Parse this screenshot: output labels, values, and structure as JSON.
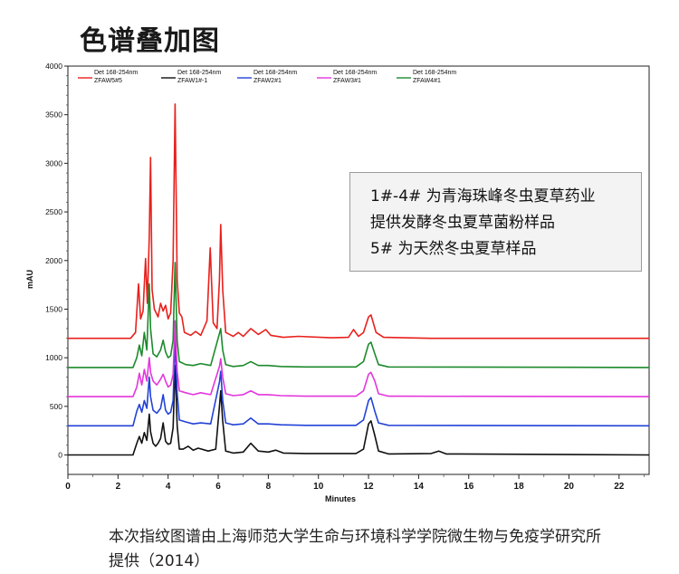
{
  "title": "色谱叠加图",
  "caption": "本次指纹图谱由上海师范大学生命与环境科学学院微生物与免疫学研究所提供（2014）",
  "annotation": {
    "lines": [
      "1#-4# 为青海珠峰冬虫夏草药业",
      "提供发酵冬虫夏草菌粉样品",
      "5# 为天然冬虫夏草样品"
    ]
  },
  "chart_data": {
    "type": "line",
    "title": "",
    "xlabel": "Minutes",
    "ylabel": "mAU",
    "xlim": [
      0,
      23.2
    ],
    "ylim": [
      -200,
      4000
    ],
    "xticks": [
      0,
      2,
      4,
      6,
      8,
      10,
      12,
      14,
      16,
      18,
      20,
      22
    ],
    "yticks": [
      0,
      500,
      1000,
      1500,
      2000,
      2500,
      3000,
      3500,
      4000
    ],
    "legend_position": "top-left",
    "series": [
      {
        "detector": "Det 168-254nm",
        "name": "ZFAW5#5",
        "color": "#e8201c",
        "points": [
          [
            0,
            1200
          ],
          [
            2.5,
            1200
          ],
          [
            2.7,
            1260
          ],
          [
            2.82,
            1760
          ],
          [
            2.9,
            1400
          ],
          [
            3.0,
            1480
          ],
          [
            3.1,
            2020
          ],
          [
            3.17,
            1560
          ],
          [
            3.25,
            2250
          ],
          [
            3.3,
            3060
          ],
          [
            3.36,
            1700
          ],
          [
            3.45,
            1500
          ],
          [
            3.6,
            1420
          ],
          [
            3.7,
            1560
          ],
          [
            3.8,
            1480
          ],
          [
            3.9,
            1540
          ],
          [
            4.0,
            1400
          ],
          [
            4.1,
            1460
          ],
          [
            4.2,
            2000
          ],
          [
            4.28,
            3610
          ],
          [
            4.36,
            1800
          ],
          [
            4.45,
            1460
          ],
          [
            4.55,
            1420
          ],
          [
            4.65,
            1260
          ],
          [
            4.9,
            1230
          ],
          [
            5.1,
            1270
          ],
          [
            5.3,
            1230
          ],
          [
            5.55,
            1380
          ],
          [
            5.68,
            2130
          ],
          [
            5.8,
            1360
          ],
          [
            5.95,
            1300
          ],
          [
            6.05,
            1800
          ],
          [
            6.1,
            2370
          ],
          [
            6.18,
            1700
          ],
          [
            6.3,
            1260
          ],
          [
            6.6,
            1220
          ],
          [
            6.8,
            1260
          ],
          [
            7.0,
            1220
          ],
          [
            7.3,
            1300
          ],
          [
            7.6,
            1240
          ],
          [
            7.9,
            1290
          ],
          [
            8.1,
            1230
          ],
          [
            8.6,
            1210
          ],
          [
            9.2,
            1220
          ],
          [
            10.5,
            1205
          ],
          [
            11.2,
            1210
          ],
          [
            11.4,
            1290
          ],
          [
            11.6,
            1220
          ],
          [
            11.8,
            1260
          ],
          [
            12.0,
            1420
          ],
          [
            12.1,
            1440
          ],
          [
            12.3,
            1260
          ],
          [
            12.6,
            1210
          ],
          [
            14.5,
            1200
          ],
          [
            23.2,
            1200
          ]
        ]
      },
      {
        "detector": "Det 168-254nm",
        "name": "ZFAW1#-1",
        "color": "#111111",
        "points": [
          [
            0,
            0
          ],
          [
            2.6,
            0
          ],
          [
            2.75,
            120
          ],
          [
            2.85,
            190
          ],
          [
            2.95,
            120
          ],
          [
            3.05,
            230
          ],
          [
            3.15,
            150
          ],
          [
            3.25,
            420
          ],
          [
            3.3,
            240
          ],
          [
            3.4,
            120
          ],
          [
            3.5,
            90
          ],
          [
            3.6,
            120
          ],
          [
            3.7,
            170
          ],
          [
            3.8,
            330
          ],
          [
            3.9,
            140
          ],
          [
            4.0,
            110
          ],
          [
            4.1,
            120
          ],
          [
            4.2,
            280
          ],
          [
            4.28,
            920
          ],
          [
            4.36,
            300
          ],
          [
            4.45,
            60
          ],
          [
            4.6,
            60
          ],
          [
            4.8,
            90
          ],
          [
            5.0,
            50
          ],
          [
            5.2,
            70
          ],
          [
            5.6,
            40
          ],
          [
            5.9,
            60
          ],
          [
            6.05,
            500
          ],
          [
            6.1,
            660
          ],
          [
            6.18,
            350
          ],
          [
            6.3,
            40
          ],
          [
            6.6,
            20
          ],
          [
            7.0,
            30
          ],
          [
            7.3,
            120
          ],
          [
            7.6,
            40
          ],
          [
            8.0,
            30
          ],
          [
            8.3,
            50
          ],
          [
            8.6,
            20
          ],
          [
            9.5,
            15
          ],
          [
            11.5,
            15
          ],
          [
            11.8,
            60
          ],
          [
            12.0,
            320
          ],
          [
            12.1,
            350
          ],
          [
            12.25,
            200
          ],
          [
            12.4,
            40
          ],
          [
            12.8,
            10
          ],
          [
            14.5,
            15
          ],
          [
            14.8,
            40
          ],
          [
            15.1,
            10
          ],
          [
            23.2,
            0
          ]
        ]
      },
      {
        "detector": "Det 168-254nm",
        "name": "ZFAW2#1",
        "color": "#2242d6",
        "points": [
          [
            0,
            300
          ],
          [
            2.6,
            300
          ],
          [
            2.75,
            450
          ],
          [
            2.85,
            520
          ],
          [
            2.95,
            440
          ],
          [
            3.05,
            560
          ],
          [
            3.15,
            480
          ],
          [
            3.25,
            800
          ],
          [
            3.3,
            600
          ],
          [
            3.4,
            460
          ],
          [
            3.55,
            430
          ],
          [
            3.7,
            480
          ],
          [
            3.8,
            620
          ],
          [
            3.9,
            460
          ],
          [
            4.0,
            420
          ],
          [
            4.1,
            440
          ],
          [
            4.2,
            560
          ],
          [
            4.28,
            1180
          ],
          [
            4.36,
            640
          ],
          [
            4.45,
            360
          ],
          [
            4.7,
            340
          ],
          [
            5.0,
            320
          ],
          [
            5.3,
            330
          ],
          [
            5.7,
            320
          ],
          [
            6.05,
            750
          ],
          [
            6.1,
            860
          ],
          [
            6.18,
            560
          ],
          [
            6.3,
            330
          ],
          [
            6.6,
            310
          ],
          [
            7.0,
            320
          ],
          [
            7.3,
            380
          ],
          [
            7.6,
            320
          ],
          [
            8.0,
            320
          ],
          [
            8.5,
            310
          ],
          [
            9.5,
            305
          ],
          [
            11.5,
            305
          ],
          [
            11.8,
            360
          ],
          [
            12.0,
            560
          ],
          [
            12.1,
            590
          ],
          [
            12.25,
            450
          ],
          [
            12.4,
            330
          ],
          [
            12.8,
            305
          ],
          [
            23.2,
            300
          ]
        ]
      },
      {
        "detector": "Det 168-254nm",
        "name": "ZFAW3#1",
        "color": "#e336dc",
        "points": [
          [
            0,
            600
          ],
          [
            2.6,
            600
          ],
          [
            2.75,
            700
          ],
          [
            2.85,
            840
          ],
          [
            2.95,
            720
          ],
          [
            3.05,
            880
          ],
          [
            3.15,
            760
          ],
          [
            3.25,
            1000
          ],
          [
            3.3,
            850
          ],
          [
            3.4,
            760
          ],
          [
            3.55,
            720
          ],
          [
            3.7,
            780
          ],
          [
            3.8,
            830
          ],
          [
            3.9,
            760
          ],
          [
            4.0,
            700
          ],
          [
            4.1,
            720
          ],
          [
            4.2,
            830
          ],
          [
            4.28,
            1380
          ],
          [
            4.36,
            860
          ],
          [
            4.45,
            660
          ],
          [
            4.7,
            640
          ],
          [
            5.0,
            620
          ],
          [
            5.3,
            640
          ],
          [
            5.7,
            620
          ],
          [
            6.05,
            910
          ],
          [
            6.1,
            990
          ],
          [
            6.18,
            800
          ],
          [
            6.3,
            630
          ],
          [
            6.6,
            610
          ],
          [
            7.0,
            620
          ],
          [
            7.3,
            660
          ],
          [
            7.6,
            620
          ],
          [
            8.0,
            620
          ],
          [
            8.5,
            610
          ],
          [
            9.5,
            605
          ],
          [
            11.5,
            605
          ],
          [
            11.8,
            660
          ],
          [
            12.0,
            830
          ],
          [
            12.1,
            850
          ],
          [
            12.25,
            760
          ],
          [
            12.4,
            630
          ],
          [
            12.8,
            605
          ],
          [
            23.2,
            600
          ]
        ]
      },
      {
        "detector": "Det 168-254nm",
        "name": "ZFAW4#1",
        "color": "#1d8a2c",
        "points": [
          [
            0,
            900
          ],
          [
            2.6,
            900
          ],
          [
            2.75,
            1000
          ],
          [
            2.85,
            1130
          ],
          [
            2.95,
            1020
          ],
          [
            3.05,
            1260
          ],
          [
            3.15,
            1080
          ],
          [
            3.25,
            1760
          ],
          [
            3.3,
            1300
          ],
          [
            3.4,
            1040
          ],
          [
            3.55,
            1010
          ],
          [
            3.7,
            1080
          ],
          [
            3.8,
            1180
          ],
          [
            3.9,
            1060
          ],
          [
            4.0,
            1000
          ],
          [
            4.1,
            1020
          ],
          [
            4.2,
            1180
          ],
          [
            4.28,
            1980
          ],
          [
            4.36,
            1180
          ],
          [
            4.45,
            960
          ],
          [
            4.7,
            930
          ],
          [
            5.0,
            920
          ],
          [
            5.3,
            940
          ],
          [
            5.7,
            920
          ],
          [
            6.05,
            1250
          ],
          [
            6.1,
            1300
          ],
          [
            6.18,
            1080
          ],
          [
            6.3,
            930
          ],
          [
            6.6,
            910
          ],
          [
            7.0,
            920
          ],
          [
            7.3,
            960
          ],
          [
            7.6,
            920
          ],
          [
            8.0,
            920
          ],
          [
            8.5,
            910
          ],
          [
            9.5,
            905
          ],
          [
            11.5,
            905
          ],
          [
            11.8,
            960
          ],
          [
            12.0,
            1140
          ],
          [
            12.1,
            1160
          ],
          [
            12.25,
            1040
          ],
          [
            12.4,
            930
          ],
          [
            12.8,
            905
          ],
          [
            23.2,
            900
          ]
        ]
      }
    ]
  }
}
